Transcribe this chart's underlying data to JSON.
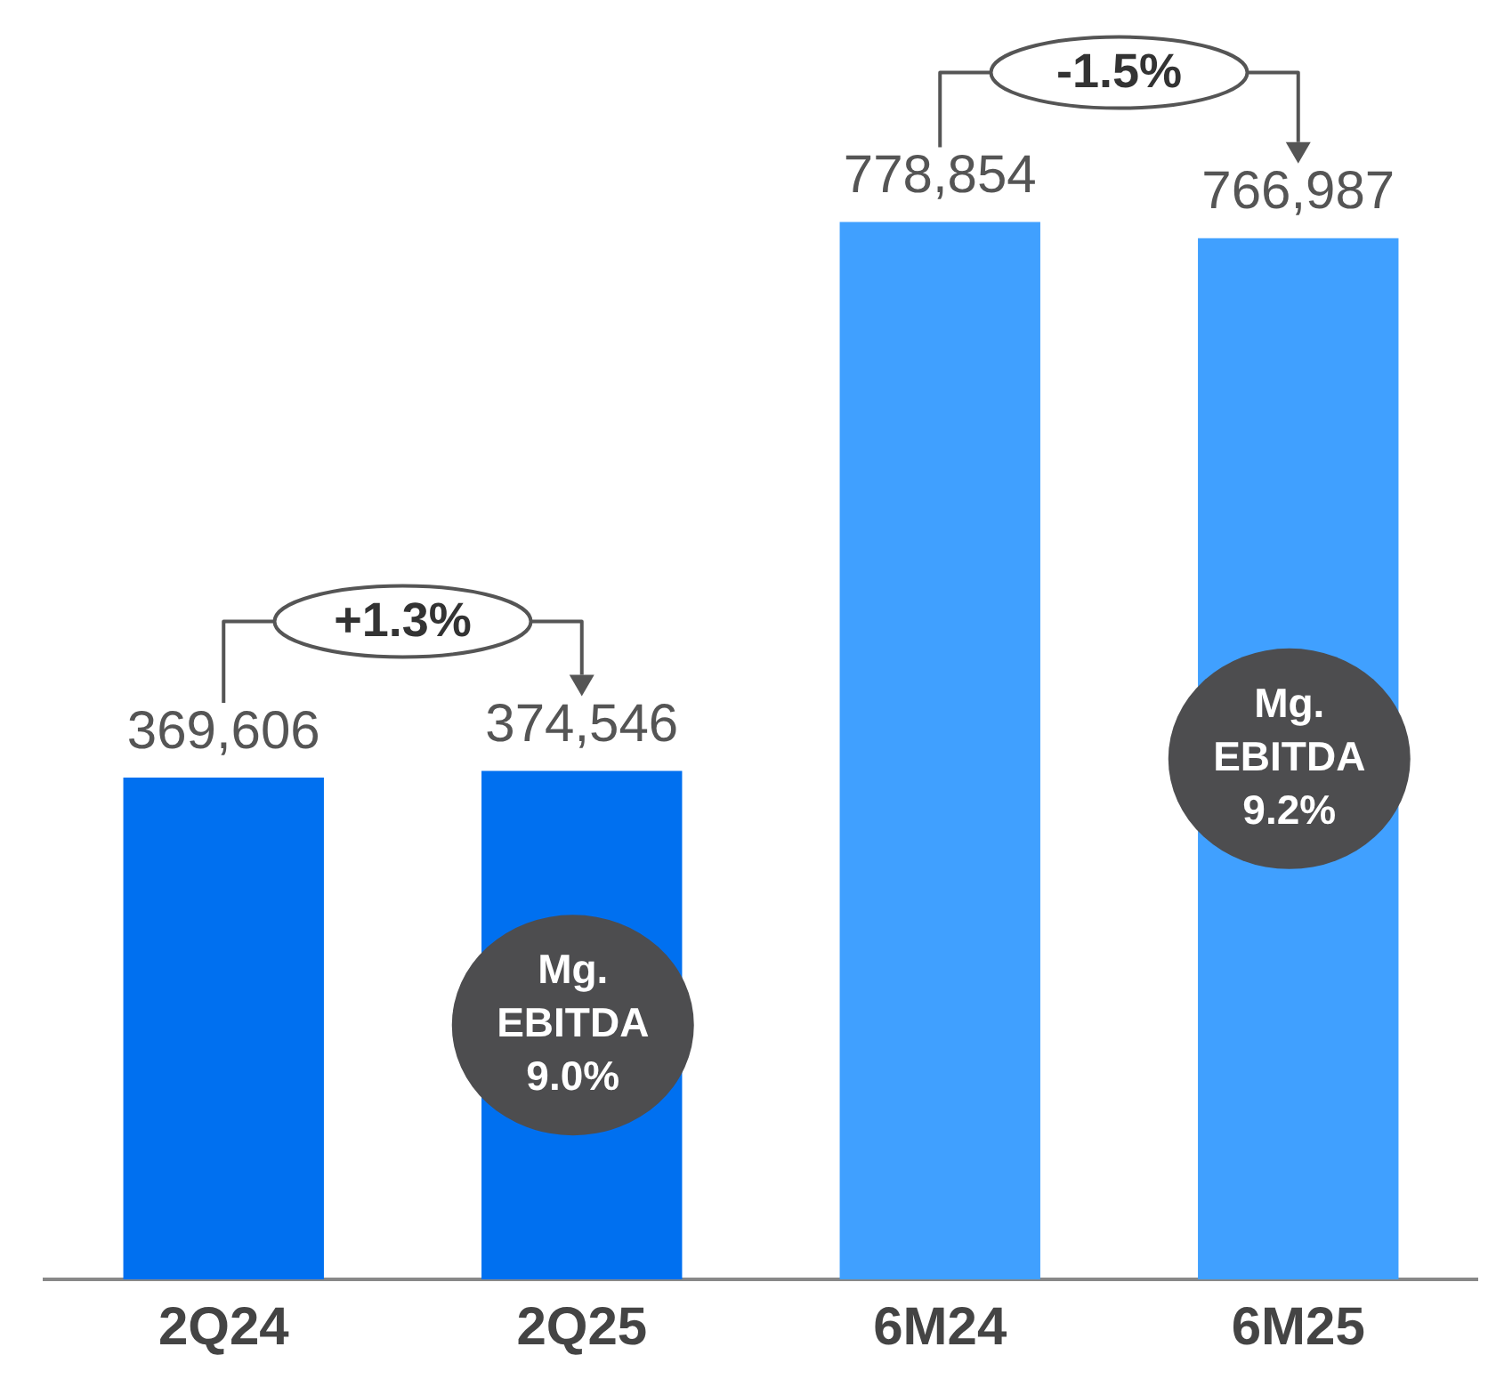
{
  "chart_data": {
    "type": "bar",
    "categories": [
      "2Q24",
      "2Q25",
      "6M24",
      "6M25"
    ],
    "values": [
      369606,
      374546,
      778854,
      766987
    ],
    "colors": [
      "#0070f0",
      "#0070f0",
      "#40a0ff",
      "#40a0ff"
    ],
    "value_labels": [
      "369,606",
      "374,546",
      "778,854",
      "766,987"
    ],
    "annotations": [
      "+1.3%",
      "Mg. EBITDA 9.0%",
      "-1.5%",
      "Mg. EBITDA 9.2%"
    ],
    "tick_labels": "x",
    "grid": false,
    "legend": false
  }
}
